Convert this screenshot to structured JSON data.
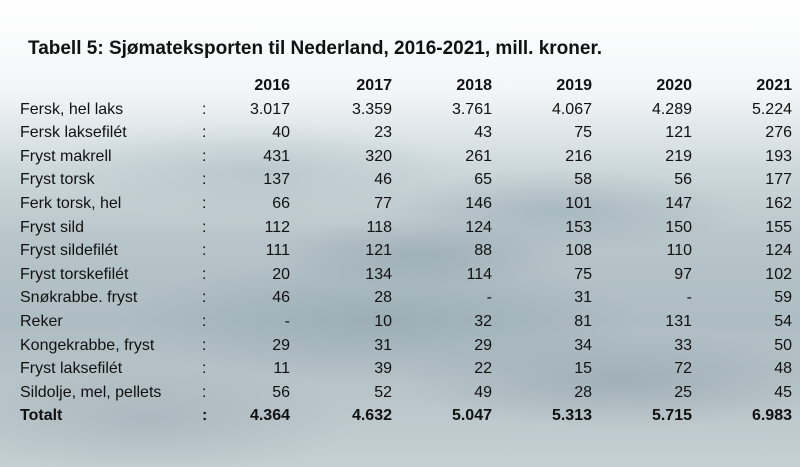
{
  "title": "Tabell 5: Sjømateksporten til Nederland, 2016-2021, mill. kroner.",
  "years": [
    "2016",
    "2017",
    "2018",
    "2019",
    "2020",
    "2021"
  ],
  "rows": [
    {
      "name": "Fersk, hel laks",
      "values": [
        "3.017",
        "3.359",
        "3.761",
        "4.067",
        "4.289",
        "5.224"
      ]
    },
    {
      "name": "Fersk laksefilét",
      "values": [
        "40",
        "23",
        "43",
        "75",
        "121",
        "276"
      ]
    },
    {
      "name": "Fryst makrell",
      "values": [
        "431",
        "320",
        "261",
        "216",
        "219",
        "193"
      ]
    },
    {
      "name": "Fryst torsk",
      "values": [
        "137",
        "46",
        "65",
        "58",
        "56",
        "177"
      ]
    },
    {
      "name": "Ferk torsk, hel",
      "values": [
        "66",
        "77",
        "146",
        "101",
        "147",
        "162"
      ]
    },
    {
      "name": "Fryst sild",
      "values": [
        "112",
        "118",
        "124",
        "153",
        "150",
        "155"
      ]
    },
    {
      "name": "Fryst sildefilét",
      "values": [
        "111",
        "121",
        "88",
        "108",
        "110",
        "124"
      ]
    },
    {
      "name": "Fryst torskefilét",
      "values": [
        "20",
        "134",
        "114",
        "75",
        "97",
        "102"
      ]
    },
    {
      "name": "Snøkrabbe. fryst",
      "values": [
        "46",
        "28",
        "-",
        "31",
        "-",
        "59"
      ]
    },
    {
      "name": "Reker",
      "values": [
        "-",
        "10",
        "32",
        "81",
        "131",
        "54"
      ]
    },
    {
      "name": "Kongekrabbe, fryst",
      "values": [
        "29",
        "31",
        "29",
        "34",
        "33",
        "50"
      ]
    },
    {
      "name": "Fryst laksefilét",
      "values": [
        "11",
        "39",
        "22",
        "15",
        "72",
        "48"
      ]
    },
    {
      "name": "Sildolje, mel, pellets",
      "values": [
        "56",
        "52",
        "49",
        "28",
        "25",
        "45"
      ]
    }
  ],
  "total": {
    "name": "Totalt",
    "values": [
      "4.364",
      "4.632",
      "5.047",
      "5.313",
      "5.715",
      "6.983"
    ]
  },
  "separator": ":"
}
